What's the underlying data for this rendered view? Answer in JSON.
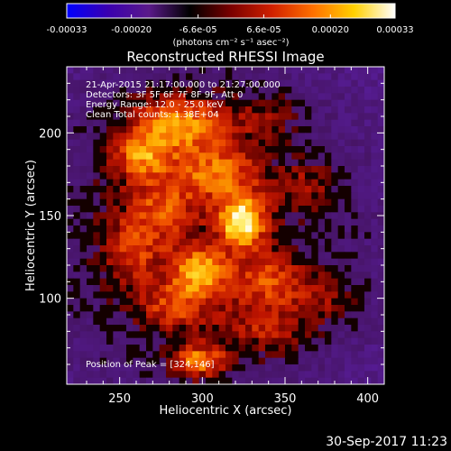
{
  "colorbar": {
    "tick_labels": [
      "-0.00033",
      "-0.00020",
      "-6.6e-05",
      "6.6e-05",
      "0.00020",
      "0.00033"
    ],
    "tick_values": [
      -0.00033,
      -0.0002,
      -6.6e-05,
      6.6e-05,
      0.0002,
      0.00033
    ],
    "range": [
      -0.00033,
      0.00033
    ],
    "unit_label": "(photons cm⁻² s⁻¹ asec⁻²)",
    "colors": [
      "#0000ff",
      "#3a00b0",
      "#5a1a8a",
      "#000000",
      "#7a0000",
      "#d02000",
      "#ff7000",
      "#ffd000",
      "#ffffff"
    ]
  },
  "chart_data": {
    "type": "heatmap",
    "title": "Reconstructed RHESSI Image",
    "xlabel": "Heliocentric X (arcsec)",
    "ylabel": "Heliocentric Y (arcsec)",
    "xlim": [
      218,
      410
    ],
    "ylim": [
      48,
      240
    ],
    "x_ticks": [
      250,
      300,
      350,
      400
    ],
    "y_ticks": [
      100,
      150,
      200
    ],
    "peak": [
      324,
      146
    ],
    "annotations": {
      "time_range": "21-Apr-2015 21:17:00.000 to 21:27:00.000",
      "detectors": "Detectors: 3F 5F 6F 7F 8F 9F, Att 0",
      "energy": "Energy Range: 12.0 - 25.0 keV",
      "clean": "Clean    Total counts: 1.38E+04",
      "peak_text": "Position of Peak = [324,146]"
    },
    "sources": [
      {
        "x": 324,
        "y": 146,
        "amp": 1.0,
        "sx": 10,
        "sy": 11
      },
      {
        "x": 299,
        "y": 116,
        "amp": 0.8,
        "sx": 12,
        "sy": 10
      },
      {
        "x": 284,
        "y": 206,
        "amp": 0.72,
        "sx": 22,
        "sy": 12
      },
      {
        "x": 298,
        "y": 62,
        "amp": 0.72,
        "sx": 12,
        "sy": 7
      },
      {
        "x": 262,
        "y": 186,
        "amp": 0.55,
        "sx": 12,
        "sy": 9
      },
      {
        "x": 310,
        "y": 176,
        "amp": 0.55,
        "sx": 18,
        "sy": 12
      },
      {
        "x": 275,
        "y": 155,
        "amp": 0.45,
        "sx": 16,
        "sy": 16
      },
      {
        "x": 338,
        "y": 112,
        "amp": 0.45,
        "sx": 14,
        "sy": 10
      },
      {
        "x": 282,
        "y": 95,
        "amp": 0.45,
        "sx": 14,
        "sy": 10
      },
      {
        "x": 338,
        "y": 82,
        "amp": 0.35,
        "sx": 20,
        "sy": 12
      },
      {
        "x": 372,
        "y": 100,
        "amp": 0.3,
        "sx": 16,
        "sy": 12
      },
      {
        "x": 258,
        "y": 128,
        "amp": 0.35,
        "sx": 12,
        "sy": 14
      },
      {
        "x": 340,
        "y": 210,
        "amp": 0.25,
        "sx": 14,
        "sy": 10
      },
      {
        "x": 365,
        "y": 168,
        "amp": 0.3,
        "sx": 12,
        "sy": 10
      }
    ]
  },
  "footer": {
    "timestamp": "30-Sep-2017 11:23"
  }
}
